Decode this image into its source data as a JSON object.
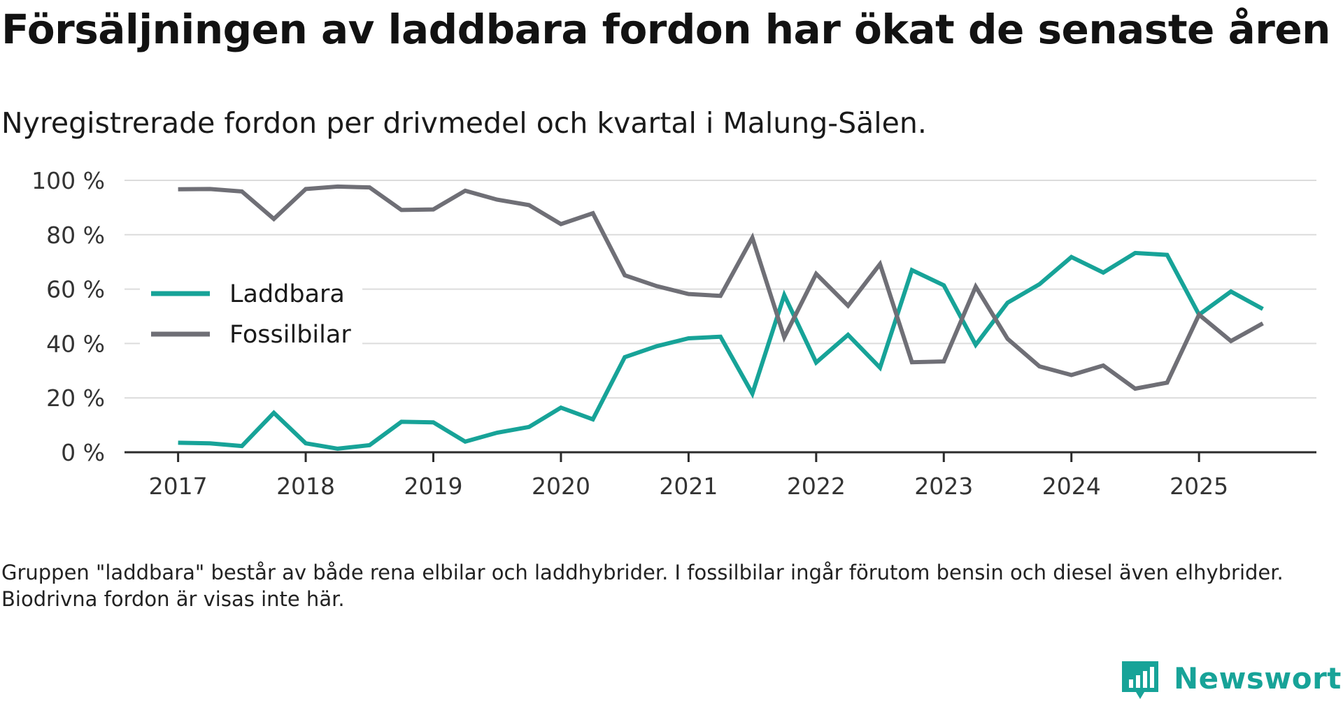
{
  "title": "Försäljningen av laddbara fordon har ökat de senaste åren",
  "subtitle": "Nyregistrerade fordon per drivmedel och kvartal i Malung-Sälen.",
  "footnote": "Gruppen \"laddbara\" består av både rena elbilar och laddhybrider. I fossilbilar ingår förutom bensin och diesel även elhybrider. Biodrivna fordon är visas inte här.",
  "brand": {
    "name": "Newsworthy",
    "icon": "newsworthy-logo-icon"
  },
  "colors": {
    "laddbara": "#17a398",
    "fossilbilar": "#6f6f76",
    "grid": "#dcdcdc",
    "axis": "#2b2b2b",
    "tick_text": "#333333"
  },
  "chart_data": {
    "type": "line",
    "title": "Försäljningen av laddbara fordon har ökat de senaste åren",
    "xlabel": "",
    "ylabel": "",
    "xlim": [
      2016.58,
      2025.92
    ],
    "ylim": [
      0,
      100
    ],
    "grid": true,
    "legend_position": "left-middle",
    "x_ticks": [
      2017,
      2018,
      2019,
      2020,
      2021,
      2022,
      2023,
      2024,
      2025
    ],
    "x_tick_labels": [
      "2017",
      "2018",
      "2019",
      "2020",
      "2021",
      "2022",
      "2023",
      "2024",
      "2025"
    ],
    "y_ticks": [
      0,
      20,
      40,
      60,
      80,
      100
    ],
    "y_tick_labels": [
      "0 %",
      "20 %",
      "40 %",
      "60 %",
      "80 %",
      "100 %"
    ],
    "x": [
      2017.0,
      2017.25,
      2017.5,
      2017.75,
      2018.0,
      2018.25,
      2018.5,
      2018.75,
      2019.0,
      2019.25,
      2019.5,
      2019.75,
      2020.0,
      2020.25,
      2020.5,
      2020.75,
      2021.0,
      2021.25,
      2021.5,
      2021.75,
      2022.0,
      2022.25,
      2022.5,
      2022.75,
      2023.0,
      2023.25,
      2023.5,
      2023.75,
      2024.0,
      2024.25,
      2024.5,
      2024.75,
      2025.0,
      2025.25,
      2025.5
    ],
    "series": [
      {
        "name": "Laddbara",
        "color_key": "laddbara",
        "values": [
          3.5,
          3.3,
          2.3,
          14.5,
          3.3,
          1.3,
          2.6,
          11.2,
          11.0,
          3.9,
          7.2,
          9.3,
          16.4,
          12.1,
          35.0,
          39.0,
          41.9,
          42.5,
          21.6,
          57.8,
          33.0,
          43.2,
          31.1,
          67.0,
          61.4,
          39.5,
          55.0,
          61.8,
          71.8,
          66.1,
          73.3,
          72.6,
          50.6,
          59.1,
          52.7
        ]
      },
      {
        "name": "Fossilbilar",
        "color_key": "fossilbilar",
        "values": [
          96.7,
          96.8,
          95.9,
          85.8,
          96.8,
          97.7,
          97.4,
          89.1,
          89.3,
          96.2,
          92.9,
          90.9,
          83.9,
          87.9,
          65.1,
          61.1,
          58.2,
          57.5,
          78.9,
          42.3,
          65.6,
          53.9,
          69.2,
          33.1,
          33.4,
          60.9,
          41.7,
          31.6,
          28.4,
          31.9,
          23.4,
          25.6,
          50.6,
          40.9,
          47.4
        ]
      }
    ]
  }
}
